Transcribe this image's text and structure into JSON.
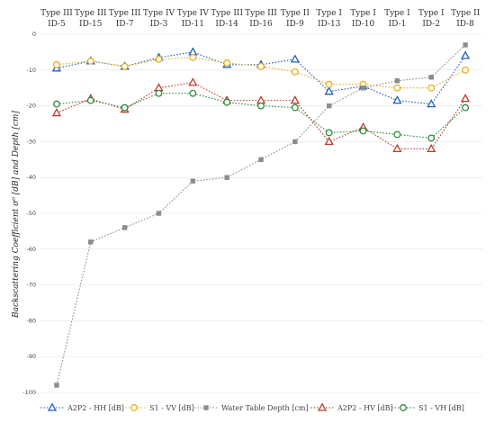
{
  "chart_data": {
    "type": "line",
    "categories": [
      [
        "Type III",
        "ID-5"
      ],
      [
        "Type III",
        "ID-15"
      ],
      [
        "Type III",
        "ID-7"
      ],
      [
        "Type IV",
        "ID-3"
      ],
      [
        "Type IV",
        "ID-11"
      ],
      [
        "Type III",
        "ID-14"
      ],
      [
        "Type III",
        "ID-16"
      ],
      [
        "Type II",
        "ID-9"
      ],
      [
        "Type I",
        "ID-13"
      ],
      [
        "Type I",
        "ID-10"
      ],
      [
        "Type I",
        "ID-1"
      ],
      [
        "Type I",
        "ID-2"
      ],
      [
        "Type II",
        "ID-8"
      ]
    ],
    "ylabel": "Backscattering Coefficient  σ⁰ [dB]  and  Depth [cm]",
    "ylim": [
      -100,
      0
    ],
    "yticks": [
      0,
      -10,
      -20,
      -30,
      -40,
      -50,
      -60,
      -70,
      -80,
      -90,
      -100
    ],
    "legend_position": "bottom",
    "series": [
      {
        "name": "A2P2 - HH [dB]",
        "color": "#1f5fbf",
        "marker": "triangle",
        "line": "dotted",
        "values": [
          -9.5,
          -7.5,
          -9,
          -6.5,
          -5,
          -8.5,
          -8.5,
          -7,
          -16,
          -14.5,
          -18.5,
          -19.5,
          -6
        ]
      },
      {
        "name": "S1 - VV [dB]",
        "color": "#e8b020",
        "marker": "circle",
        "line": "dotted",
        "values": [
          -8.5,
          -7.5,
          -9,
          -7,
          -6.5,
          -8,
          -9,
          -10.5,
          -14,
          -14,
          -15,
          -15,
          -10
        ]
      },
      {
        "name": "Water Table Depth [cm]",
        "color": "#8c8c8c",
        "marker": "square",
        "line": "dotted",
        "values": [
          -98,
          -58,
          -54,
          -50,
          -41,
          -40,
          -35,
          -30,
          -20,
          -15,
          -13,
          -12,
          -3
        ]
      },
      {
        "name": "A2P2 - HV [dB]",
        "color": "#c0392b",
        "marker": "triangle",
        "line": "dotted",
        "values": [
          -22,
          -18,
          -21,
          -15,
          -13.5,
          -18.5,
          -18.5,
          -18.5,
          -30,
          -26,
          -32,
          -32,
          -18
        ]
      },
      {
        "name": "S1 - VH [dB]",
        "color": "#2e8b3e",
        "marker": "circle",
        "line": "dotted",
        "values": [
          -19.5,
          -18.5,
          -20.5,
          -16.5,
          -16.5,
          -19,
          -20,
          -20.5,
          -27.5,
          -27,
          -28,
          -29,
          -20.5
        ]
      }
    ]
  }
}
